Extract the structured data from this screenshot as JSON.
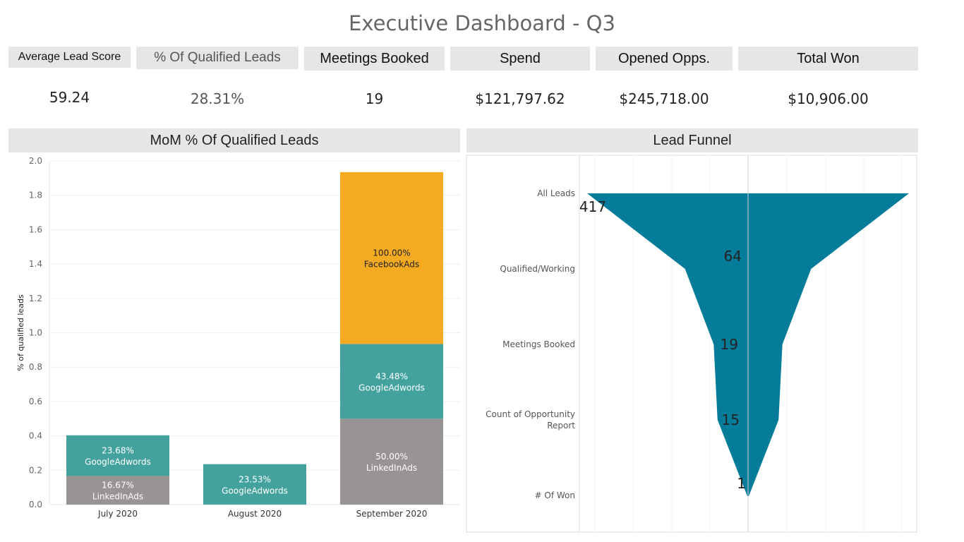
{
  "title": "Executive Dashboard - Q3",
  "kpis": [
    {
      "label": "Average Lead Score",
      "value": "59.24"
    },
    {
      "label": "% Of Qualified Leads",
      "value": "28.31%"
    },
    {
      "label": "Meetings Booked",
      "value": "19"
    },
    {
      "label": "Spend",
      "value": "$121,797.62"
    },
    {
      "label": "Opened Opps.",
      "value": "$245,718.00"
    },
    {
      "label": "Total Won",
      "value": "$10,906.00"
    }
  ],
  "panels": {
    "mom_title": "MoM % Of Qualified Leads",
    "funnel_title": "Lead Funnel"
  },
  "chart_data": [
    {
      "type": "bar",
      "stacked": true,
      "title": "MoM % Of Qualified Leads",
      "ylabel": "% of qualified leads",
      "xlabel": "",
      "ylim": [
        0,
        2.0
      ],
      "yticks": [
        "0.0",
        "0.2",
        "0.4",
        "0.6",
        "0.8",
        "1.0",
        "1.2",
        "1.4",
        "1.6",
        "1.8",
        "2.0"
      ],
      "categories": [
        "July 2020",
        "August 2020",
        "September 2020"
      ],
      "series": [
        {
          "name": "LinkedInAds",
          "color": "#979493",
          "values": [
            0.1667,
            0,
            0.5
          ],
          "labels": [
            "16.67%",
            "",
            "50.00%"
          ]
        },
        {
          "name": "GoogleAdwords",
          "color": "#43a29e",
          "values": [
            0.2368,
            0.2353,
            0.4348
          ],
          "labels": [
            "23.68%",
            "23.53%",
            "43.48%"
          ]
        },
        {
          "name": "FacebookAds",
          "color": "#f4aa21",
          "values": [
            0,
            0,
            1.0
          ],
          "labels": [
            "",
            "",
            "100.00%"
          ]
        }
      ],
      "grid": true
    },
    {
      "type": "area",
      "title": "Lead Funnel",
      "color": "#067c9b",
      "stages": [
        "All Leads",
        "Qualified/Working",
        "Meetings Booked",
        "Count of Opportunity Report",
        "# Of Won"
      ],
      "stage_lines": [
        [
          "All Leads"
        ],
        [
          "Qualified/Working"
        ],
        [
          "Meetings Booked"
        ],
        [
          "Count of Opportunity",
          "Report"
        ],
        [
          "# Of Won"
        ]
      ],
      "values": [
        417,
        64,
        19,
        15,
        1
      ],
      "labels": [
        "417",
        "64",
        "19",
        "15",
        "1"
      ],
      "grid": true
    }
  ]
}
